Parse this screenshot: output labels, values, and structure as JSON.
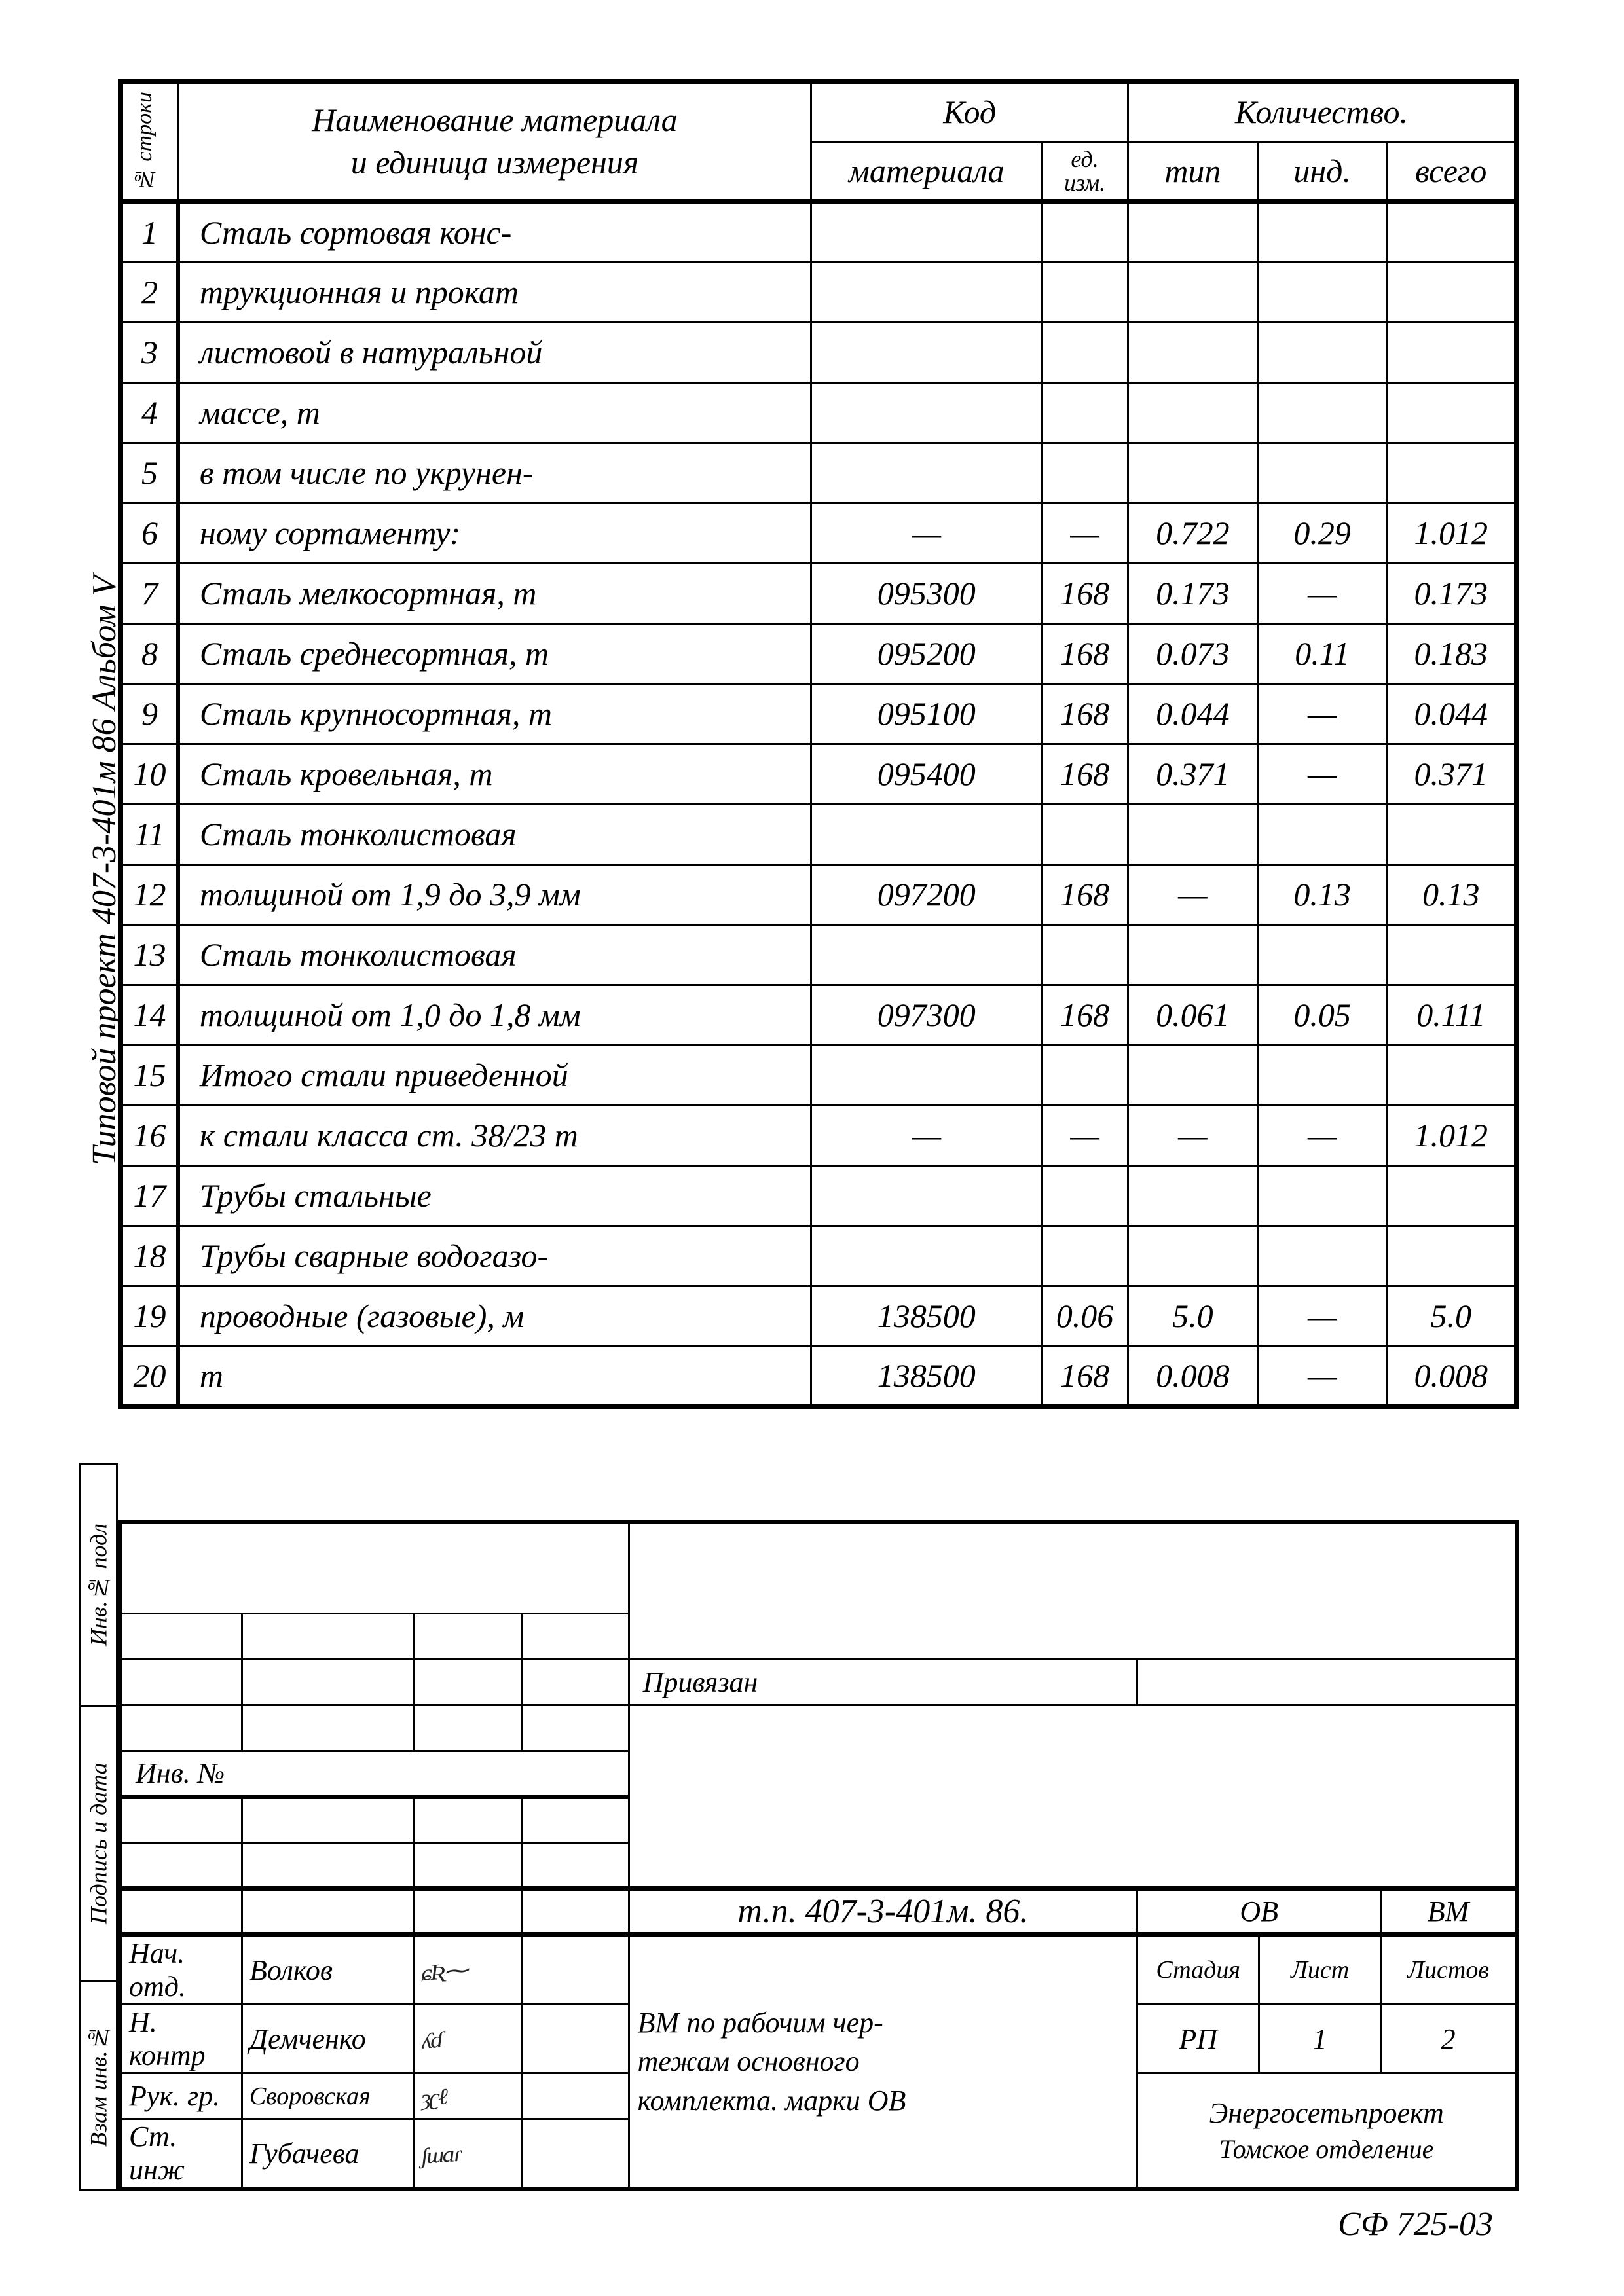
{
  "side_labels": {
    "project": "Типовой   проект   407-3-401м 86   Альбом V"
  },
  "tb_side": {
    "a": "Инв.№ подл",
    "b": "Подпись и дата",
    "c": "Взам инв.№"
  },
  "headers": {
    "rownum": "№ строки",
    "name": "Наименование  материала\nи  единица  измерения",
    "code": "Код",
    "code_m": "материала",
    "code_e": "ед.\nизм.",
    "qty": "Количество.",
    "qty_t": "тип",
    "qty_i": "инд.",
    "qty_a": "всего"
  },
  "rows": [
    {
      "n": "1",
      "name": "Сталь  сортовая  конс-",
      "m": "",
      "e": "",
      "t": "",
      "i": "",
      "a": ""
    },
    {
      "n": "2",
      "name": "трукционная  и  прокат",
      "m": "",
      "e": "",
      "t": "",
      "i": "",
      "a": ""
    },
    {
      "n": "3",
      "name": "листовой  в  натуральной",
      "m": "",
      "e": "",
      "t": "",
      "i": "",
      "a": ""
    },
    {
      "n": "4",
      "name": "массе,                                       т",
      "m": "",
      "e": "",
      "t": "",
      "i": "",
      "a": ""
    },
    {
      "n": "5",
      "name": "в  том  числе   по  укрунен-",
      "m": "",
      "e": "",
      "t": "",
      "i": "",
      "a": ""
    },
    {
      "n": "6",
      "name": "ному    сортаменту:",
      "m": "—",
      "e": "—",
      "t": "0.722",
      "i": "0.29",
      "a": "1.012"
    },
    {
      "n": "7",
      "name": "Сталь   мелкосортная,        т",
      "m": "095300",
      "e": "168",
      "t": "0.173",
      "i": "—",
      "a": "0.173"
    },
    {
      "n": "8",
      "name": "Сталь   среднесортная,      т",
      "m": "095200",
      "e": "168",
      "t": "0.073",
      "i": "0.11",
      "a": "0.183"
    },
    {
      "n": "9",
      "name": "Сталь   крупносортная,     т",
      "m": "095100",
      "e": "168",
      "t": "0.044",
      "i": "—",
      "a": "0.044"
    },
    {
      "n": "10",
      "name": "Сталь   кровельная,            т",
      "m": "095400",
      "e": "168",
      "t": "0.371",
      "i": "—",
      "a": "0.371"
    },
    {
      "n": "11",
      "name": "Сталь   тонколистовая",
      "m": "",
      "e": "",
      "t": "",
      "i": "",
      "a": ""
    },
    {
      "n": "12",
      "name": "толщиной  от  1,9 до 3,9 мм",
      "m": "097200",
      "e": "168",
      "t": "—",
      "i": "0.13",
      "a": "0.13"
    },
    {
      "n": "13",
      "name": "Сталь  тонколистовая",
      "m": "",
      "e": "",
      "t": "",
      "i": "",
      "a": ""
    },
    {
      "n": "14",
      "name": "толщиной  от  1,0 до  1,8 мм",
      "m": "097300",
      "e": "168",
      "t": "0.061",
      "i": "0.05",
      "a": "0.111"
    },
    {
      "n": "15",
      "name": "Итого   стали  приведенной",
      "m": "",
      "e": "",
      "t": "",
      "i": "",
      "a": ""
    },
    {
      "n": "16",
      "name": "к стали  класса  ст. 38/23  т",
      "m": "—",
      "e": "—",
      "t": "—",
      "i": "—",
      "a": "1.012"
    },
    {
      "n": "17",
      "name": "Трубы    стальные",
      "m": "",
      "e": "",
      "t": "",
      "i": "",
      "a": ""
    },
    {
      "n": "18",
      "name": "Трубы   сварные  водогазо-",
      "m": "",
      "e": "",
      "t": "",
      "i": "",
      "a": ""
    },
    {
      "n": "19",
      "name": "проводные  (газовые),         м",
      "m": "138500",
      "e": "0.06",
      "t": "5.0",
      "i": "—",
      "a": "5.0"
    },
    {
      "n": "20",
      "name": "т",
      "m": "138500",
      "e": "168",
      "t": "0.008",
      "i": "—",
      "a": "0.008"
    }
  ],
  "title_block": {
    "priv": "Привязан",
    "inv": "Инв. №",
    "proj_code": "т.п.  407-3-401м. 86.",
    "ov": "ОВ",
    "bm": "ВМ",
    "desc1": "ВМ  по  рабочим  чер-",
    "desc2": "тежам  основного",
    "desc3": "комплекта. марки ОВ",
    "stage_h": "Стадия",
    "sheet_h": "Лист",
    "sheets_h": "Листов",
    "stage": "РП",
    "sheet": "1",
    "sheets": "2",
    "org1": "Энергосетьпроект",
    "org2": "Томское  отделение",
    "roles": {
      "r1": "Нач. отд.",
      "r2": "Н. контр",
      "r3": "Рук. гр.",
      "r4": "Ст. инж"
    },
    "names": {
      "n1": "Волков",
      "n2": "Демченко",
      "n3": "Своровская",
      "n4": "Губачева"
    }
  },
  "form_number": "СФ 725-03"
}
